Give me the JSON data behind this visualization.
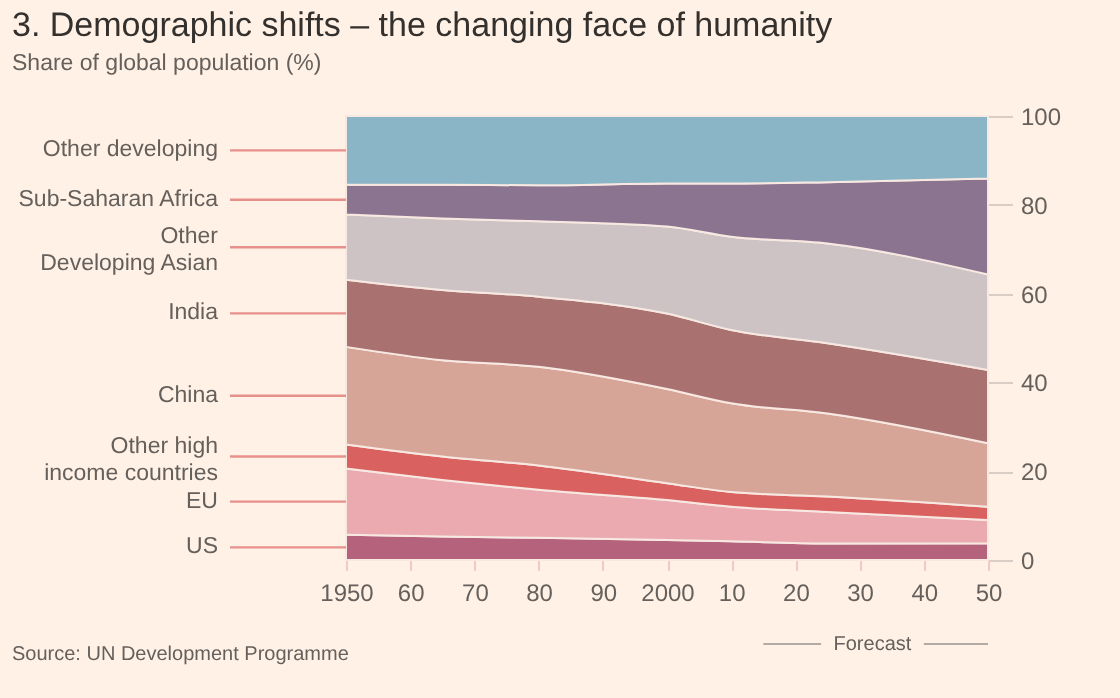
{
  "chart_data": {
    "type": "area",
    "stacked": true,
    "title": "3. Demographic shifts – the changing face of humanity",
    "subtitle": "Share of global population (%)",
    "x": [
      1950,
      1965,
      1980,
      2000,
      2010,
      2025,
      2050
    ],
    "xlim": [
      1950,
      2050
    ],
    "xticks": [
      1950,
      {
        "value": 1960,
        "label": "60"
      },
      {
        "value": 1970,
        "label": "70"
      },
      {
        "value": 1980,
        "label": "80"
      },
      {
        "value": 1990,
        "label": "90"
      },
      2000,
      {
        "value": 2010,
        "label": "10"
      },
      {
        "value": 2020,
        "label": "20"
      },
      {
        "value": 2030,
        "label": "30"
      },
      {
        "value": 2040,
        "label": "40"
      },
      {
        "value": 2050,
        "label": "50"
      }
    ],
    "ylim": [
      0,
      100
    ],
    "yticks": [
      0,
      20,
      40,
      60,
      80,
      100
    ],
    "series": [
      {
        "name": "US",
        "color": "#b5627d",
        "values": [
          5.7,
          5.3,
          5.0,
          4.5,
          4.2,
          3.7,
          3.8
        ]
      },
      {
        "name": "EU",
        "color": "#eaaab0",
        "values": [
          14.9,
          12.7,
          10.8,
          9.0,
          7.8,
          7.1,
          5.2
        ]
      },
      {
        "name": "Other high income countries",
        "color": "#d9615f",
        "values": [
          5.4,
          5.3,
          5.5,
          3.8,
          3.3,
          3.5,
          3.0
        ]
      },
      {
        "name": "China",
        "color": "#d7a597",
        "values": [
          22.0,
          21.7,
          22.2,
          21.2,
          20.0,
          18.7,
          14.3
        ]
      },
      {
        "name": "India",
        "color": "#a97170",
        "values": [
          15.1,
          15.8,
          15.8,
          17.0,
          16.5,
          15.8,
          16.5
        ]
      },
      {
        "name": "Other Developing Asian",
        "color": "#cdc3c4",
        "values": [
          14.7,
          16.1,
          17.0,
          19.6,
          21.0,
          22.5,
          21.5
        ]
      },
      {
        "name": "Sub-Saharan Africa",
        "color": "#8b7490",
        "values": [
          6.7,
          7.6,
          8.1,
          9.7,
          12.0,
          13.8,
          21.6
        ]
      },
      {
        "name": "Other developing",
        "color": "#8ab5c6",
        "values": [
          15.5,
          15.5,
          15.6,
          15.2,
          15.2,
          14.9,
          14.1
        ]
      }
    ],
    "annotations": [
      "Forecast",
      "Source: UN Development Programme"
    ]
  }
}
